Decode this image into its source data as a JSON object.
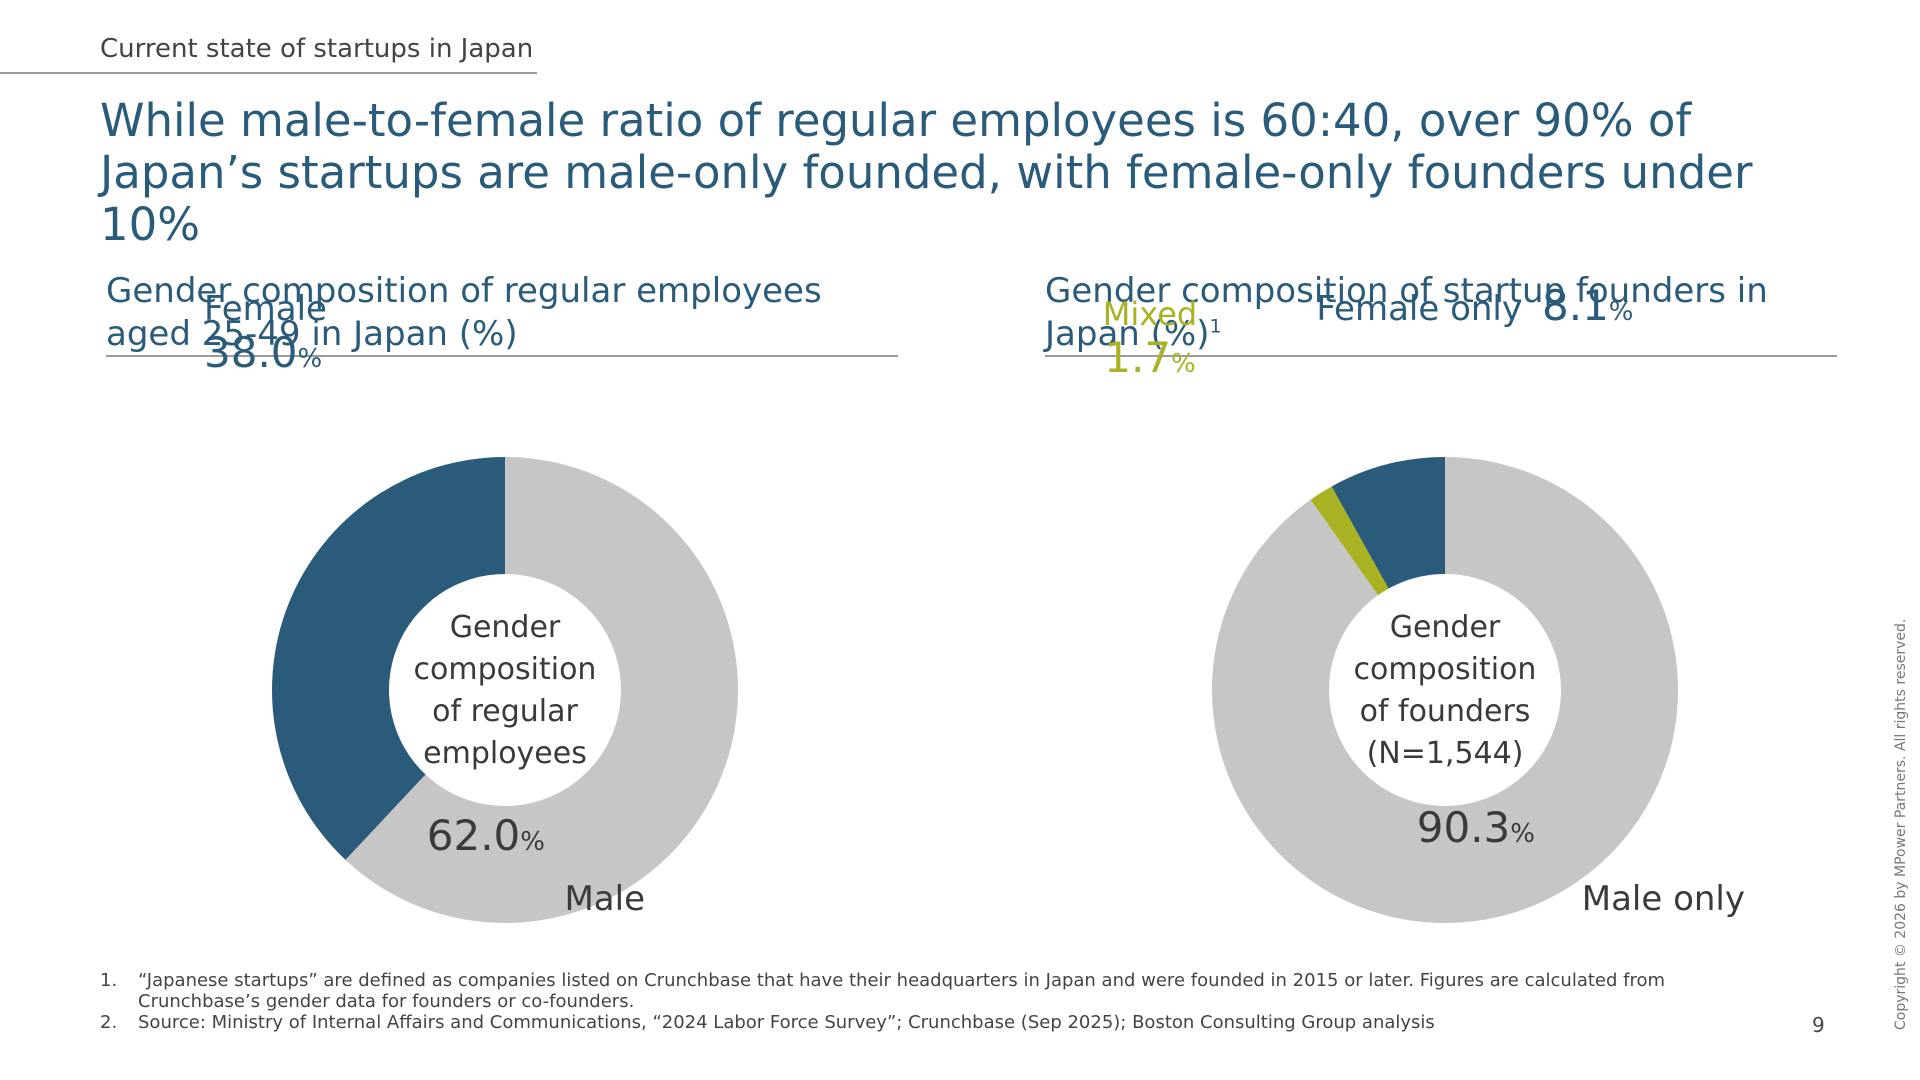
{
  "header": {
    "section": "Current state of startups in Japan",
    "title": "While male-to-female ratio of regular employees is 60:40, over 90% of Japan’s startups are male-only founded, with female-only founders under 10%"
  },
  "colors": {
    "primary": "#2a5b7a",
    "grey": "#c6c6c6",
    "olive": "#a8b223",
    "text": "#3a3a3a"
  },
  "chart_data": [
    {
      "type": "pie",
      "title": "Gender composition of regular employees aged 25-49 in Japan (%)",
      "center_label": [
        "Gender",
        "composition",
        "of regular",
        "employees"
      ],
      "slices": [
        {
          "name": "Female",
          "value": 38.0,
          "label": "38.0",
          "color": "#2a5b7a"
        },
        {
          "name": "Male",
          "value": 62.0,
          "label": "62.0",
          "color": "#c6c6c6"
        }
      ],
      "unit": "%"
    },
    {
      "type": "pie",
      "title": "Gender composition of startup founders in Japan (%)",
      "title_footnote": "1",
      "center_label": [
        "Gender",
        "composition",
        "of founders",
        "(N=1,544)"
      ],
      "slices": [
        {
          "name": "Female only",
          "value": 8.1,
          "label": "8.1",
          "color": "#2a5b7a"
        },
        {
          "name": "Mixed",
          "value": 1.7,
          "label": "1.7",
          "color": "#a8b223"
        },
        {
          "name": "Male only",
          "value": 90.3,
          "label": "90.3",
          "color": "#c6c6c6"
        }
      ],
      "unit": "%"
    }
  ],
  "footnotes": [
    {
      "num": "1.",
      "text": "“Japanese startups” are defined as companies listed on Crunchbase that have their headquarters in Japan and were founded in 2015 or later. Figures are calculated from Crunchbase’s gender data for founders or co-founders."
    },
    {
      "num": "2.",
      "text": "Source: Ministry of Internal Affairs and Communications, “2024 Labor Force Survey”; Crunchbase (Sep 2025); Boston Consulting Group analysis"
    }
  ],
  "page_number": "9",
  "copyright": "Copyright © 2026 by MPower Partners. All rights reserved."
}
